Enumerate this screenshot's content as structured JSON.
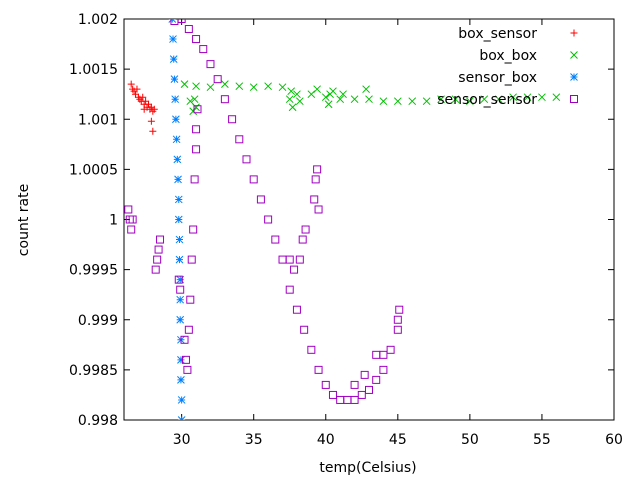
{
  "chart_data": {
    "type": "scatter",
    "title": "",
    "xlabel": "temp(Celsius)",
    "ylabel": "count rate",
    "xlim": [
      26,
      60
    ],
    "ylim": [
      0.998,
      1.002
    ],
    "x_ticks": [
      {
        "value": 30,
        "label": "30"
      },
      {
        "value": 35,
        "label": "35"
      },
      {
        "value": 40,
        "label": "40"
      },
      {
        "value": 45,
        "label": "45"
      },
      {
        "value": 50,
        "label": "50"
      },
      {
        "value": 55,
        "label": "55"
      },
      {
        "value": 60,
        "label": "60"
      }
    ],
    "y_ticks": [
      {
        "value": 0.998,
        "label": "0.998"
      },
      {
        "value": 0.9985,
        "label": "0.9985"
      },
      {
        "value": 0.999,
        "label": "0.999"
      },
      {
        "value": 0.9995,
        "label": "0.9995"
      },
      {
        "value": 1.0,
        "label": "1"
      },
      {
        "value": 1.0005,
        "label": "1.0005"
      },
      {
        "value": 1.001,
        "label": "1.001"
      },
      {
        "value": 1.0015,
        "label": "1.0015"
      },
      {
        "value": 1.002,
        "label": "1.002"
      }
    ],
    "grid": false,
    "legend_position": "top-right",
    "series": [
      {
        "name": "box_sensor",
        "color": "#ff0000",
        "marker": "plus",
        "points": [
          [
            26.5,
            1.00135
          ],
          [
            26.6,
            1.0013
          ],
          [
            26.7,
            1.00128
          ],
          [
            26.8,
            1.00125
          ],
          [
            26.9,
            1.0013
          ],
          [
            27.0,
            1.00122
          ],
          [
            27.1,
            1.0012
          ],
          [
            27.2,
            1.00118
          ],
          [
            27.3,
            1.00122
          ],
          [
            27.4,
            1.00115
          ],
          [
            27.5,
            1.00118
          ],
          [
            27.6,
            1.00112
          ],
          [
            27.7,
            1.00115
          ],
          [
            27.8,
            1.0011
          ],
          [
            27.9,
            1.00112
          ],
          [
            28.0,
            1.00108
          ],
          [
            28.1,
            1.0011
          ],
          [
            27.9,
            1.00098
          ],
          [
            28.0,
            1.00088
          ],
          [
            27.4,
            1.0011
          ]
        ]
      },
      {
        "name": "box_box",
        "color": "#00c000",
        "marker": "cross",
        "points": [
          [
            30.2,
            1.00135
          ],
          [
            31.0,
            1.00133
          ],
          [
            32.0,
            1.00132
          ],
          [
            33.0,
            1.00135
          ],
          [
            34.0,
            1.00133
          ],
          [
            35.0,
            1.00132
          ],
          [
            36.0,
            1.00133
          ],
          [
            37.0,
            1.00132
          ],
          [
            37.6,
            1.00128
          ],
          [
            38.0,
            1.00125
          ],
          [
            39.0,
            1.00125
          ],
          [
            40.0,
            1.00122
          ],
          [
            41.0,
            1.0012
          ],
          [
            42.0,
            1.0012
          ],
          [
            43.0,
            1.0012
          ],
          [
            44.0,
            1.00118
          ],
          [
            45.0,
            1.00118
          ],
          [
            46.0,
            1.00118
          ],
          [
            47.0,
            1.00118
          ],
          [
            48.0,
            1.0012
          ],
          [
            49.0,
            1.0012
          ],
          [
            50.0,
            1.00118
          ],
          [
            51.0,
            1.0012
          ],
          [
            52.0,
            1.0012
          ],
          [
            53.0,
            1.00122
          ],
          [
            54.0,
            1.00122
          ],
          [
            55.0,
            1.00122
          ],
          [
            56.0,
            1.00122
          ],
          [
            30.6,
            1.00118
          ],
          [
            30.8,
            1.00108
          ],
          [
            30.9,
            1.0012
          ],
          [
            31.0,
            1.00112
          ],
          [
            37.5,
            1.0012
          ],
          [
            37.7,
            1.00112
          ],
          [
            38.2,
            1.00118
          ],
          [
            39.4,
            1.0013
          ],
          [
            40.2,
            1.00115
          ],
          [
            40.3,
            1.00125
          ],
          [
            42.8,
            1.0013
          ],
          [
            40.5,
            1.00128
          ],
          [
            41.2,
            1.00125
          ]
        ]
      },
      {
        "name": "sensor_box",
        "color": "#0080ff",
        "marker": "star",
        "points": [
          [
            29.35,
            1.002
          ],
          [
            29.4,
            1.0018
          ],
          [
            29.45,
            1.0016
          ],
          [
            29.5,
            1.0014
          ],
          [
            29.55,
            1.0012
          ],
          [
            29.6,
            1.001
          ],
          [
            29.65,
            1.0008
          ],
          [
            29.7,
            1.0006
          ],
          [
            29.75,
            1.0004
          ],
          [
            29.8,
            1.0002
          ],
          [
            29.8,
            1.0
          ],
          [
            29.85,
            0.9998
          ],
          [
            29.85,
            0.9996
          ],
          [
            29.9,
            0.9994
          ],
          [
            29.9,
            0.9992
          ],
          [
            29.9,
            0.999
          ],
          [
            29.95,
            0.9988
          ],
          [
            29.95,
            0.9986
          ],
          [
            29.95,
            0.9984
          ],
          [
            30.0,
            0.9982
          ],
          [
            30.0,
            0.998
          ]
        ]
      },
      {
        "name": "sensor_sensor",
        "color": "#a000c0",
        "marker": "square",
        "points": [
          [
            29.5,
            1.00198
          ],
          [
            30.0,
            1.002
          ],
          [
            30.5,
            1.0019
          ],
          [
            31.0,
            1.0018
          ],
          [
            31.5,
            1.0017
          ],
          [
            32.0,
            1.00155
          ],
          [
            32.5,
            1.0014
          ],
          [
            33.0,
            1.0012
          ],
          [
            33.5,
            1.001
          ],
          [
            34.0,
            1.0008
          ],
          [
            34.5,
            1.0006
          ],
          [
            35.0,
            1.0004
          ],
          [
            35.5,
            1.0002
          ],
          [
            36.0,
            1.0
          ],
          [
            36.5,
            0.9998
          ],
          [
            37.0,
            0.9996
          ],
          [
            37.5,
            0.9993
          ],
          [
            38.0,
            0.9991
          ],
          [
            38.5,
            0.9989
          ],
          [
            39.0,
            0.9987
          ],
          [
            39.5,
            0.9985
          ],
          [
            40.0,
            0.99835
          ],
          [
            40.5,
            0.99825
          ],
          [
            41.0,
            0.9982
          ],
          [
            41.5,
            0.9982
          ],
          [
            42.0,
            0.9982
          ],
          [
            42.5,
            0.99825
          ],
          [
            43.0,
            0.9983
          ],
          [
            43.5,
            0.9984
          ],
          [
            44.0,
            0.9985
          ],
          [
            26.3,
            1.0001
          ],
          [
            26.4,
            1.0
          ],
          [
            26.5,
            0.9999
          ],
          [
            26.6,
            1.0
          ],
          [
            28.2,
            0.9995
          ],
          [
            28.3,
            0.9996
          ],
          [
            28.4,
            0.9997
          ],
          [
            28.5,
            0.9998
          ],
          [
            29.8,
            0.9994
          ],
          [
            29.9,
            0.9993
          ],
          [
            30.2,
            0.9988
          ],
          [
            30.3,
            0.9986
          ],
          [
            30.4,
            0.9985
          ],
          [
            30.5,
            0.9989
          ],
          [
            30.6,
            0.9992
          ],
          [
            30.7,
            0.9996
          ],
          [
            30.8,
            0.9999
          ],
          [
            30.9,
            1.0004
          ],
          [
            31.0,
            1.0007
          ],
          [
            31.0,
            1.0009
          ],
          [
            31.1,
            1.0011
          ],
          [
            37.5,
            0.9996
          ],
          [
            37.8,
            0.9995
          ],
          [
            38.2,
            0.9996
          ],
          [
            38.4,
            0.9998
          ],
          [
            38.6,
            0.9999
          ],
          [
            39.2,
            1.0002
          ],
          [
            39.3,
            1.0004
          ],
          [
            39.4,
            1.0005
          ],
          [
            39.5,
            1.0001
          ],
          [
            44.0,
            0.99865
          ],
          [
            44.5,
            0.9987
          ],
          [
            45.0,
            0.9989
          ],
          [
            45.0,
            0.999
          ],
          [
            45.1,
            0.9991
          ],
          [
            42.0,
            0.99835
          ],
          [
            42.7,
            0.99845
          ],
          [
            43.5,
            0.99865
          ]
        ]
      }
    ]
  }
}
